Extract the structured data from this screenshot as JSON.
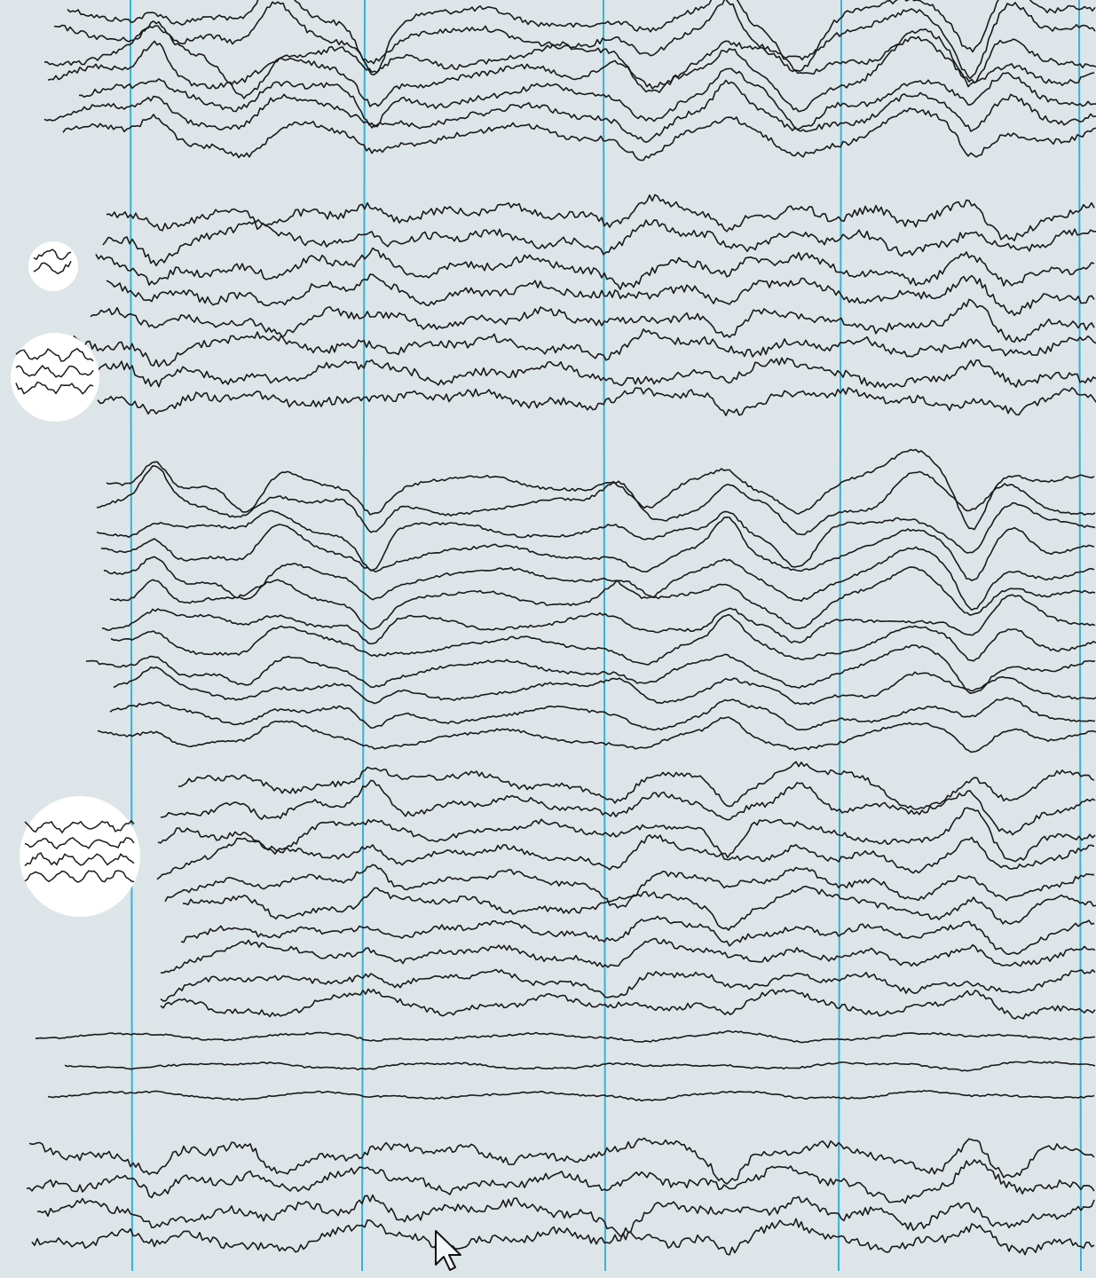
{
  "screen": {
    "background": "#dde5e8",
    "trace_color": "#1a1a1a",
    "marker_color": "#2fb6d8"
  },
  "eeg": {
    "channel_groups": [
      {
        "name": "group-1",
        "channels": 7,
        "style": "large-spikes"
      },
      {
        "name": "group-2",
        "channels": 8,
        "style": "fast-activity"
      },
      {
        "name": "group-3",
        "channels": 12,
        "style": "slow-waves"
      },
      {
        "name": "group-4",
        "channels": 10,
        "style": "mixed"
      },
      {
        "name": "group-5",
        "channels": 3,
        "style": "flat"
      },
      {
        "name": "group-6",
        "channels": 4,
        "style": "fast-activity"
      }
    ],
    "epoch_markers": 5,
    "mini_windows": 3
  },
  "cursor": {
    "icon": "mouse-pointer-icon"
  }
}
